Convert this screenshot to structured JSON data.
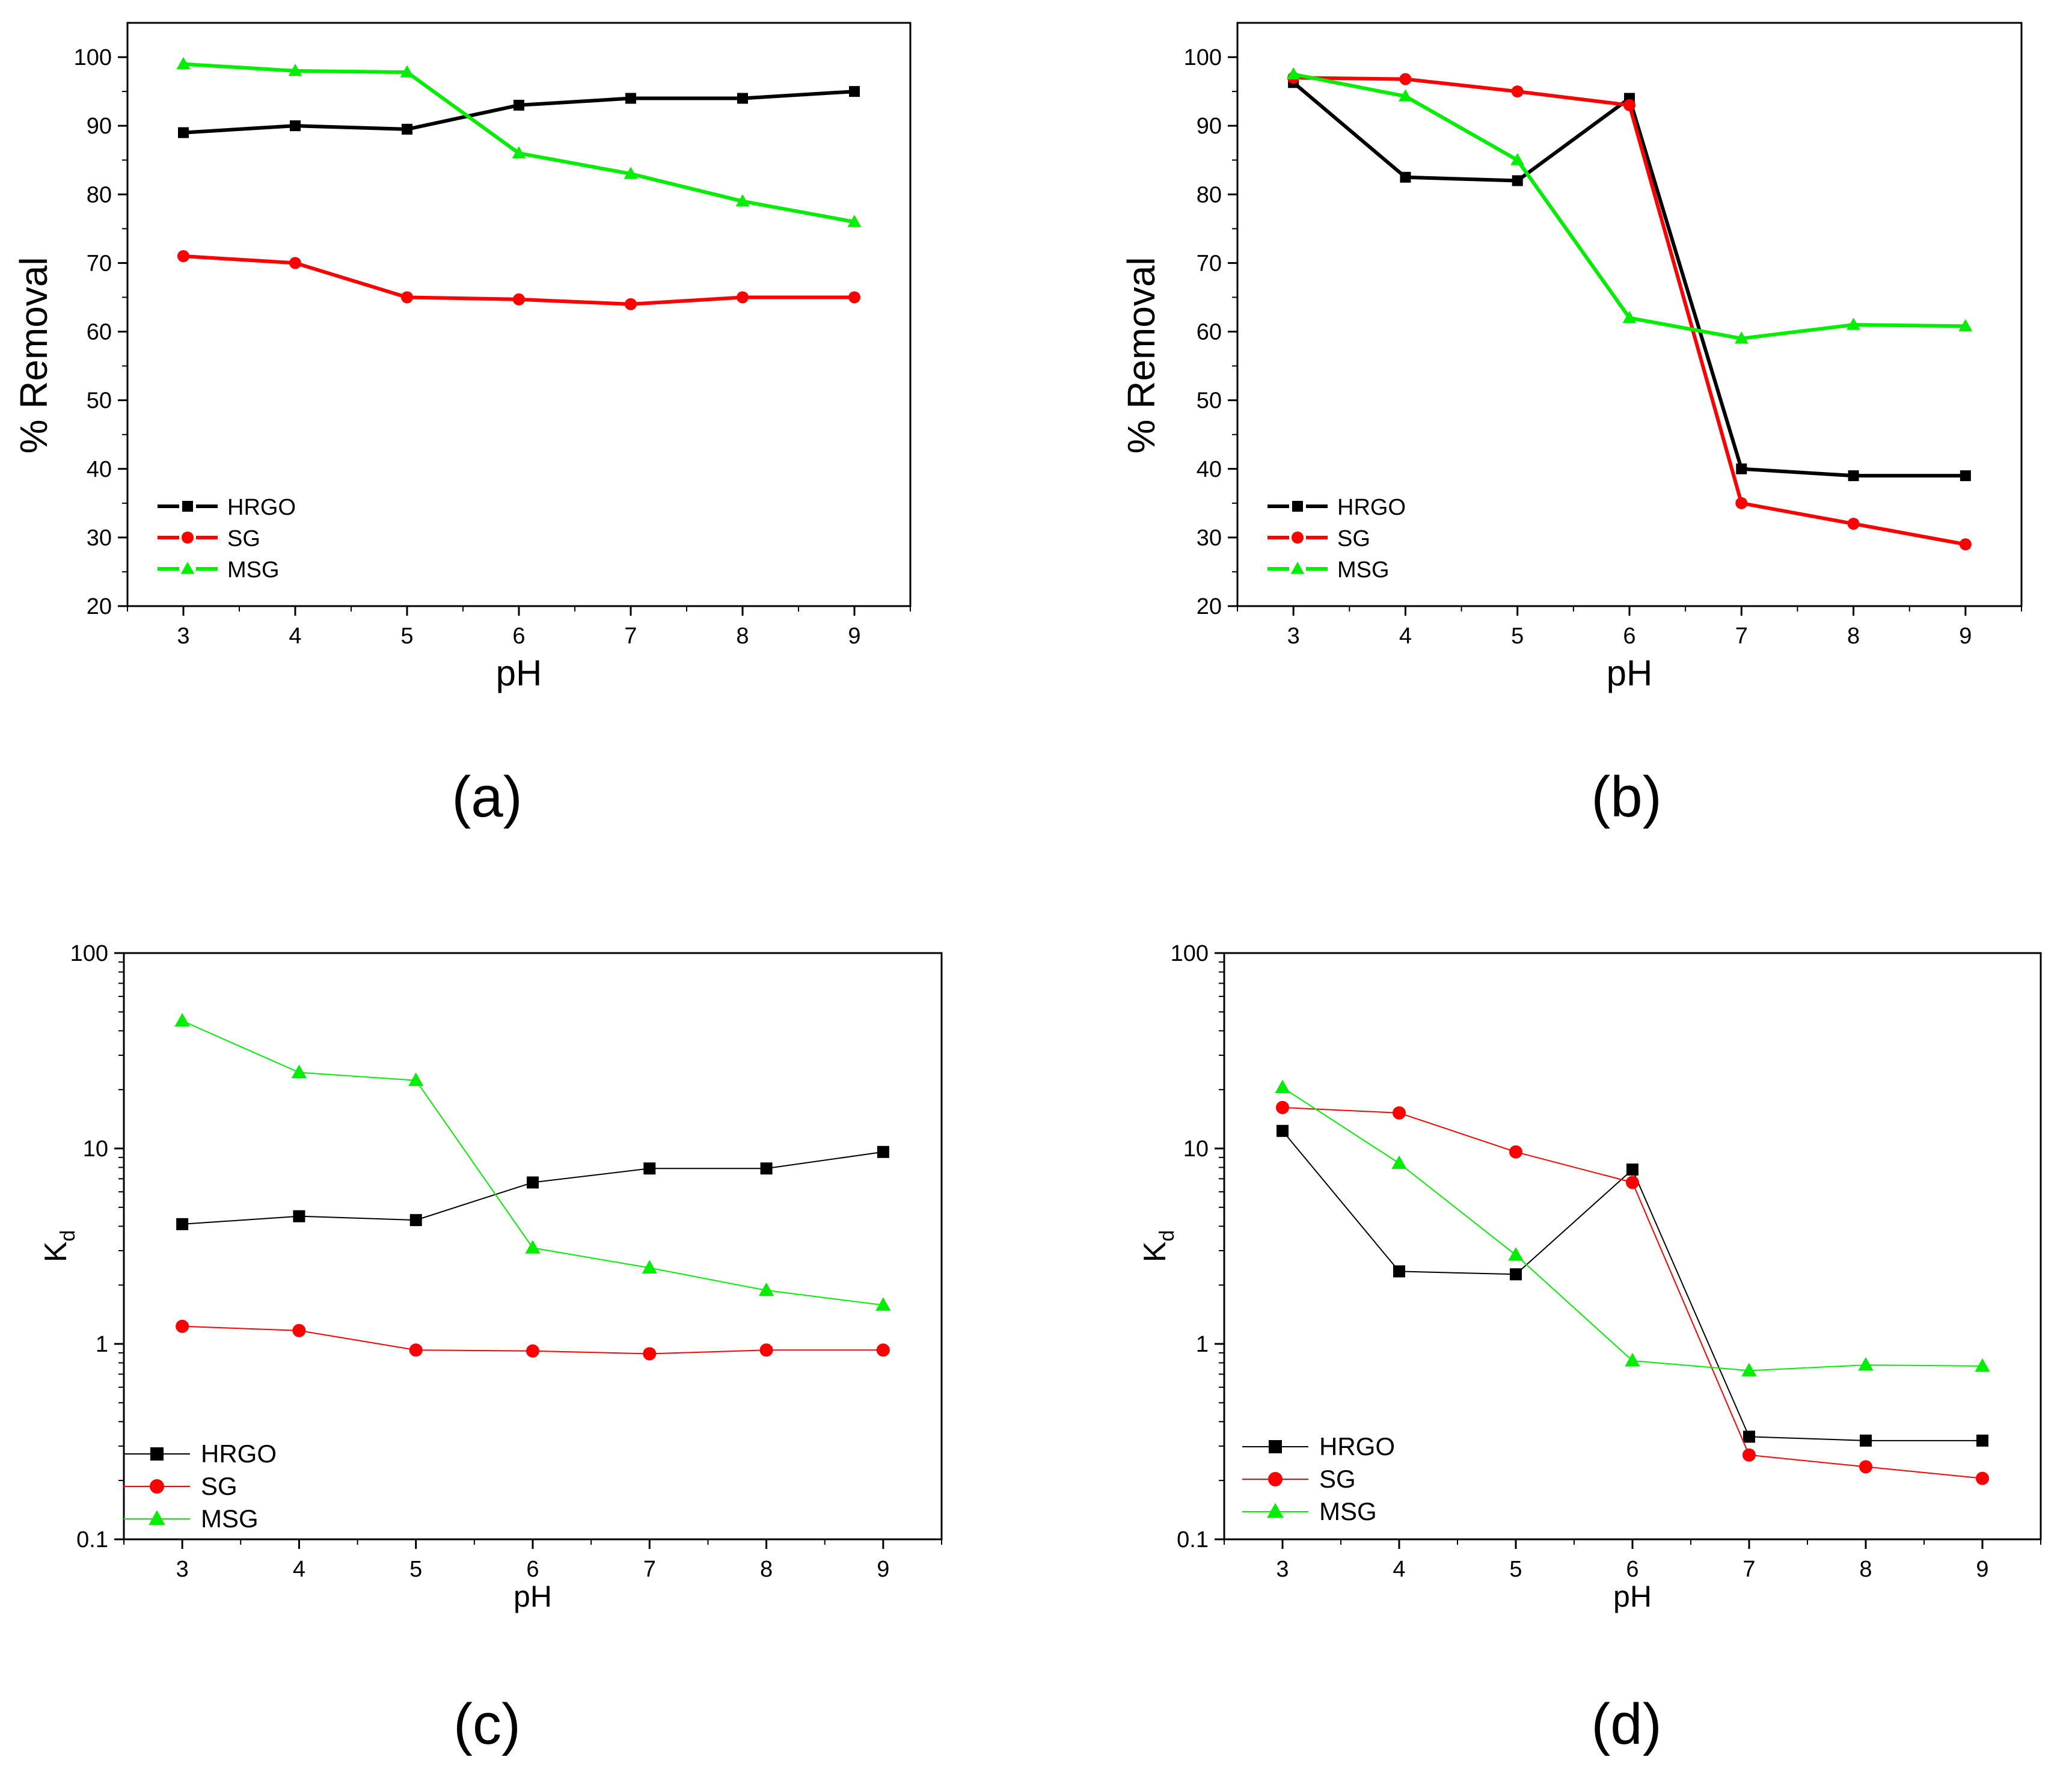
{
  "figure": {
    "captions": [
      "(a)",
      "(b)",
      "(c)",
      "(d)"
    ]
  },
  "colors": {
    "HRGO": "#000000",
    "SG": "#ff0000",
    "MSG": "#00ee00",
    "axis": "#000000"
  },
  "chart_data": [
    {
      "id": "a",
      "type": "line",
      "scale": "linear",
      "xlabel": "pH",
      "ylabel": "% Removal",
      "x": [
        3,
        4,
        5,
        6,
        7,
        8,
        9
      ],
      "xticks": [
        "3",
        "4",
        "5",
        "6",
        "7",
        "8",
        "9"
      ],
      "xlim": [
        2.5,
        9.5
      ],
      "ylim": [
        20,
        105
      ],
      "yticks": [
        20,
        30,
        40,
        50,
        60,
        70,
        80,
        90,
        100
      ],
      "ytick_labels": [
        "20",
        "30",
        "40",
        "50",
        "60",
        "70",
        "80",
        "90",
        "100"
      ],
      "legend_position": "bottom-left",
      "line_style": "thick",
      "series": [
        {
          "name": "HRGO",
          "marker": "square",
          "values": [
            89,
            90,
            89.5,
            93,
            94,
            94,
            95
          ]
        },
        {
          "name": "SG",
          "marker": "circle",
          "values": [
            71,
            70,
            65,
            64.7,
            64,
            65,
            65
          ]
        },
        {
          "name": "MSG",
          "marker": "triangle",
          "values": [
            99,
            98,
            97.8,
            86,
            83,
            79,
            76
          ]
        }
      ]
    },
    {
      "id": "b",
      "type": "line",
      "scale": "linear",
      "xlabel": "pH",
      "ylabel": "% Removal",
      "x": [
        3,
        4,
        5,
        6,
        7,
        8,
        9
      ],
      "xticks": [
        "3",
        "4",
        "5",
        "6",
        "7",
        "8",
        "9"
      ],
      "xlim": [
        2.5,
        9.5
      ],
      "ylim": [
        20,
        105
      ],
      "yticks": [
        20,
        30,
        40,
        50,
        60,
        70,
        80,
        90,
        100
      ],
      "ytick_labels": [
        "20",
        "30",
        "40",
        "50",
        "60",
        "70",
        "80",
        "90",
        "100"
      ],
      "legend_position": "bottom-left",
      "line_style": "thick",
      "series": [
        {
          "name": "HRGO",
          "marker": "square",
          "values": [
            96.3,
            82.5,
            82,
            94,
            40,
            39,
            39
          ]
        },
        {
          "name": "SG",
          "marker": "circle",
          "values": [
            97,
            96.8,
            95,
            93,
            35,
            32,
            29
          ]
        },
        {
          "name": "MSG",
          "marker": "triangle",
          "values": [
            97.5,
            94.3,
            85,
            62,
            59,
            61,
            60.8
          ]
        }
      ]
    },
    {
      "id": "c",
      "type": "line",
      "scale": "log",
      "xlabel": "pH",
      "ylabel": "K",
      "ylabel_sub": "d",
      "x": [
        3,
        4,
        5,
        6,
        7,
        8,
        9
      ],
      "xticks": [
        "3",
        "4",
        "5",
        "6",
        "7",
        "8",
        "9"
      ],
      "xlim": [
        2.5,
        9.5
      ],
      "ylim": [
        0.1,
        100
      ],
      "yticks": [
        0.1,
        1,
        10,
        100
      ],
      "ytick_labels": [
        "0.1",
        "1",
        "10",
        "100"
      ],
      "legend_position": "bottom-left",
      "line_style": "thin",
      "series": [
        {
          "name": "HRGO",
          "marker": "square",
          "values": [
            4.1,
            4.5,
            4.3,
            6.7,
            7.9,
            7.9,
            9.6
          ]
        },
        {
          "name": "SG",
          "marker": "circle",
          "values": [
            1.23,
            1.17,
            0.93,
            0.92,
            0.89,
            0.93,
            0.93
          ]
        },
        {
          "name": "MSG",
          "marker": "triangle",
          "values": [
            45,
            24.5,
            22.3,
            3.1,
            2.45,
            1.88,
            1.58
          ]
        }
      ]
    },
    {
      "id": "d",
      "type": "line",
      "scale": "log",
      "xlabel": "pH",
      "ylabel": "K",
      "ylabel_sub": "d",
      "x": [
        3,
        4,
        5,
        6,
        7,
        8,
        9
      ],
      "xticks": [
        "3",
        "4",
        "5",
        "6",
        "7",
        "8",
        "9"
      ],
      "xlim": [
        2.5,
        9.5
      ],
      "ylim": [
        0.1,
        100
      ],
      "yticks": [
        0.1,
        1,
        10,
        100
      ],
      "ytick_labels": [
        "0.1",
        "1",
        "10",
        "100"
      ],
      "legend_position": "bottom-left",
      "line_style": "thin",
      "series": [
        {
          "name": "HRGO",
          "marker": "square",
          "values": [
            12.3,
            2.35,
            2.27,
            7.8,
            0.335,
            0.32,
            0.32
          ]
        },
        {
          "name": "SG",
          "marker": "circle",
          "values": [
            16.2,
            15.2,
            9.6,
            6.7,
            0.27,
            0.235,
            0.205
          ]
        },
        {
          "name": "MSG",
          "marker": "triangle",
          "values": [
            20.5,
            8.4,
            2.85,
            0.82,
            0.73,
            0.78,
            0.77
          ]
        }
      ]
    }
  ]
}
